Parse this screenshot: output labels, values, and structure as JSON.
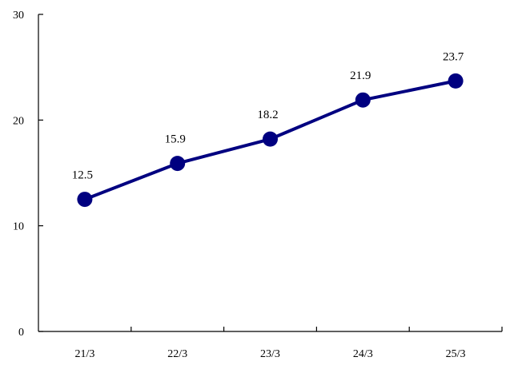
{
  "chart_data": {
    "type": "line",
    "categories": [
      "21/3",
      "22/3",
      "23/3",
      "24/3",
      "25/3"
    ],
    "values": [
      12.5,
      15.9,
      18.2,
      21.9,
      23.7
    ],
    "data_labels": [
      "12.5",
      "15.9",
      "18.2",
      "21.9",
      "23.7"
    ],
    "y_ticks": [
      0,
      10,
      20,
      30
    ],
    "y_tick_labels": [
      "0",
      "10",
      "20",
      "30"
    ],
    "ylim": [
      0,
      30
    ],
    "title": "",
    "xlabel": "",
    "ylabel": "",
    "grid": false,
    "legend": "none",
    "colors": {
      "series": "#000080",
      "axis": "#000000"
    }
  }
}
